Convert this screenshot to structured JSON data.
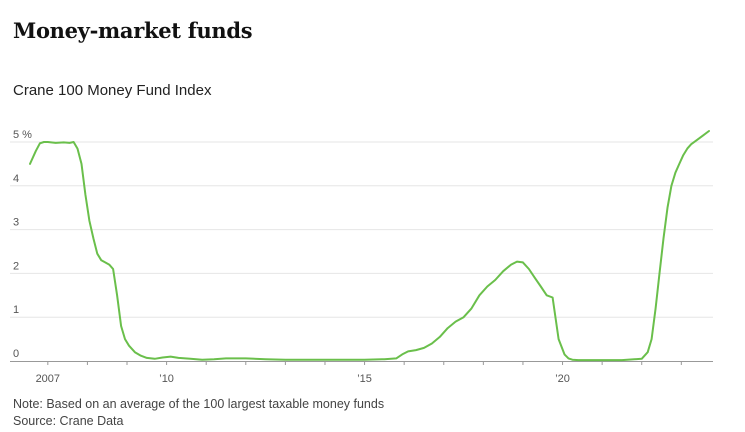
{
  "header": {
    "title": "Money-market funds",
    "subtitle": "Crane 100 Money Fund Index"
  },
  "footer": {
    "note": "Note: Based on an average of the 100 largest taxable money funds",
    "source": "Source: Crane Data"
  },
  "colors": {
    "line": "#6abf4b",
    "grid": "#e6e6e6",
    "axis": "#999999",
    "tick_label": "#555555"
  },
  "chart_data": {
    "type": "line",
    "title": "Money-market funds",
    "subtitle": "Crane 100 Money Fund Index",
    "xlabel": "",
    "ylabel": "",
    "unit": "%",
    "xlim": [
      2006.55,
      2023.8
    ],
    "ylim": [
      0,
      5
    ],
    "y_ticks": [
      0,
      1,
      2,
      3,
      4,
      5
    ],
    "y_tick_labels": [
      "0",
      "1",
      "2",
      "3",
      "4",
      "5 %"
    ],
    "x_ticks": [
      2007,
      2010,
      2015,
      2020
    ],
    "x_tick_labels": [
      "2007",
      "’10",
      "’15",
      "’20"
    ],
    "grid": true,
    "series": [
      {
        "name": "Crane 100 Money Fund Index",
        "x": [
          2006.55,
          2006.7,
          2006.8,
          2006.9,
          2007.0,
          2007.2,
          2007.4,
          2007.55,
          2007.65,
          2007.75,
          2007.85,
          2007.95,
          2008.05,
          2008.15,
          2008.25,
          2008.35,
          2008.45,
          2008.55,
          2008.65,
          2008.75,
          2008.85,
          2008.95,
          2009.05,
          2009.2,
          2009.35,
          2009.5,
          2009.7,
          2009.9,
          2010.1,
          2010.3,
          2010.6,
          2010.9,
          2011.2,
          2011.5,
          2012.0,
          2012.5,
          2013.0,
          2013.5,
          2014.0,
          2014.5,
          2015.0,
          2015.5,
          2015.8,
          2015.95,
          2016.1,
          2016.3,
          2016.5,
          2016.7,
          2016.9,
          2017.1,
          2017.3,
          2017.5,
          2017.7,
          2017.9,
          2018.1,
          2018.3,
          2018.5,
          2018.7,
          2018.85,
          2019.0,
          2019.15,
          2019.3,
          2019.45,
          2019.6,
          2019.75,
          2019.9,
          2020.05,
          2020.15,
          2020.25,
          2020.4,
          2020.6,
          2020.8,
          2021.0,
          2021.5,
          2022.0,
          2022.15,
          2022.25,
          2022.35,
          2022.45,
          2022.55,
          2022.65,
          2022.75,
          2022.85,
          2022.95,
          2023.05,
          2023.15,
          2023.25,
          2023.4,
          2023.55,
          2023.7
        ],
        "values": [
          4.5,
          4.8,
          4.97,
          5.0,
          5.0,
          4.98,
          4.99,
          4.98,
          5.0,
          4.85,
          4.5,
          3.8,
          3.2,
          2.8,
          2.45,
          2.3,
          2.25,
          2.2,
          2.1,
          1.5,
          0.8,
          0.5,
          0.35,
          0.2,
          0.12,
          0.07,
          0.05,
          0.08,
          0.1,
          0.07,
          0.05,
          0.03,
          0.04,
          0.06,
          0.06,
          0.04,
          0.03,
          0.03,
          0.03,
          0.03,
          0.03,
          0.04,
          0.06,
          0.15,
          0.22,
          0.25,
          0.3,
          0.4,
          0.55,
          0.75,
          0.9,
          1.0,
          1.2,
          1.5,
          1.7,
          1.85,
          2.05,
          2.2,
          2.27,
          2.25,
          2.1,
          1.9,
          1.7,
          1.5,
          1.45,
          0.5,
          0.15,
          0.06,
          0.03,
          0.02,
          0.02,
          0.02,
          0.02,
          0.02,
          0.05,
          0.2,
          0.5,
          1.2,
          2.0,
          2.8,
          3.5,
          4.0,
          4.3,
          4.5,
          4.7,
          4.85,
          4.95,
          5.05,
          5.15,
          5.25
        ]
      }
    ]
  }
}
